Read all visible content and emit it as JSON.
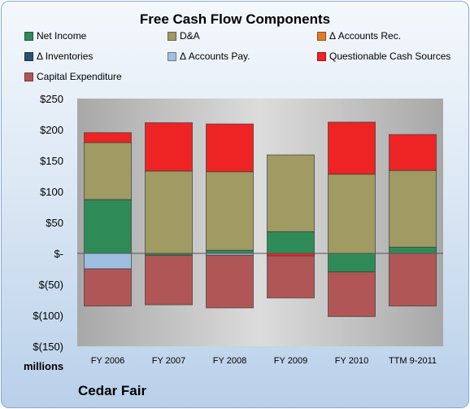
{
  "chart_data": {
    "type": "bar",
    "stacked": true,
    "title": "Free Cash Flow Components",
    "ylabel": "millions",
    "company": "Cedar Fair",
    "ylim": [
      -150,
      250
    ],
    "yticks": [
      250,
      200,
      150,
      100,
      50,
      0,
      -50,
      -100,
      -150
    ],
    "ytick_labels": [
      "$250",
      "$200",
      "$150",
      "$100",
      "$50",
      "$-",
      "$(50)",
      "$(100)",
      "$(150)"
    ],
    "categories": [
      "FY 2006",
      "FY 2007",
      "FY 2008",
      "FY 2009",
      "FY 2010",
      "TTM 9-2011"
    ],
    "grid": false,
    "legend_position": "top",
    "series": [
      {
        "name": "Net Income",
        "color": "#2e8b57",
        "values": [
          87,
          -3,
          5,
          35,
          -30,
          10
        ]
      },
      {
        "name": "D&A",
        "color": "#a09a63",
        "values": [
          92,
          133,
          127,
          124,
          128,
          124
        ]
      },
      {
        "name": "Δ Accounts Rec.",
        "color": "#e07b27",
        "values": [
          0,
          0,
          0,
          0,
          0,
          0
        ]
      },
      {
        "name": "Δ Inventories",
        "color": "#2f4f6f",
        "values": [
          0,
          0,
          0,
          0,
          0,
          0
        ]
      },
      {
        "name": "Δ Accounts Pay.",
        "color": "#9fbfe0",
        "values": [
          -25,
          0,
          -3,
          0,
          0,
          0
        ]
      },
      {
        "name": "Questionable Cash Sources",
        "color": "#ee2424",
        "values": [
          16,
          78,
          77,
          0,
          84,
          58
        ]
      },
      {
        "name": "Capital Expenditure",
        "color": "#b15656",
        "values": [
          -60,
          -80,
          -85,
          -72,
          -72,
          -85
        ]
      }
    ],
    "nonstacking_values": {
      "Questionable Cash Sources FY 2009": -8
    }
  }
}
